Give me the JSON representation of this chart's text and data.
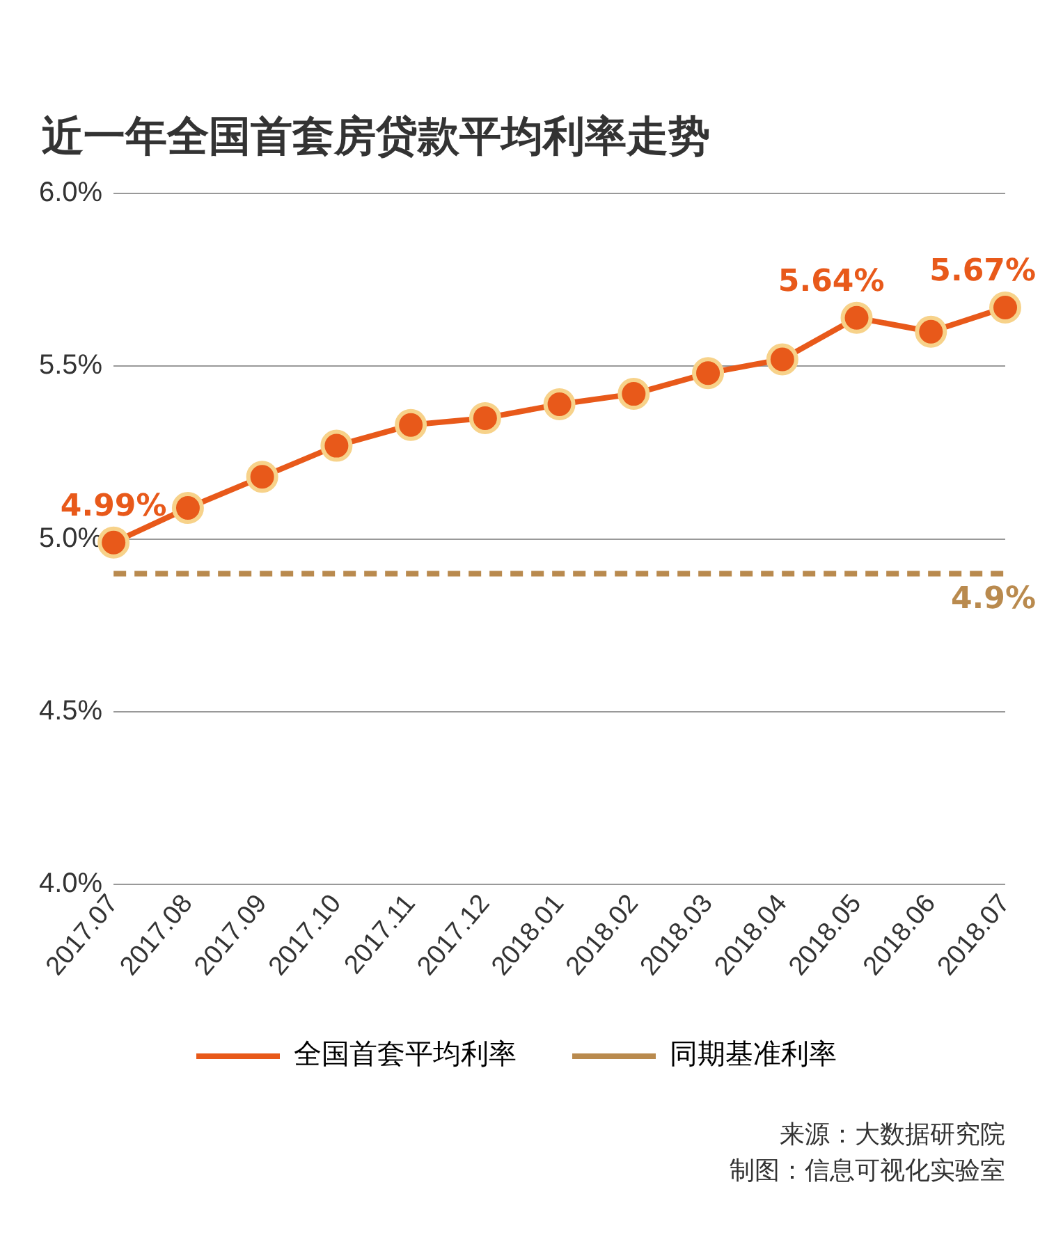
{
  "chart_data": {
    "type": "line",
    "title": "近一年全国首套房贷款平均利率走势",
    "categories": [
      "2017.07",
      "2017.08",
      "2017.09",
      "2017.10",
      "2017.11",
      "2017.12",
      "2018.01",
      "2018.02",
      "2018.03",
      "2018.04",
      "2018.05",
      "2018.06",
      "2018.07"
    ],
    "series": [
      {
        "name": "全国首套平均利率",
        "color": "#e8591a",
        "marker": "circle",
        "line_style": "solid",
        "values": [
          4.99,
          5.09,
          5.18,
          5.27,
          5.33,
          5.35,
          5.39,
          5.42,
          5.48,
          5.52,
          5.64,
          5.6,
          5.67
        ],
        "value_labels": [
          "4.99%",
          null,
          null,
          null,
          null,
          null,
          null,
          null,
          null,
          null,
          "5.64%",
          null,
          "5.67%"
        ]
      },
      {
        "name": "同期基准利率",
        "color": "#b98a4e",
        "marker": "none",
        "line_style": "dashed",
        "values": [
          4.9,
          4.9,
          4.9,
          4.9,
          4.9,
          4.9,
          4.9,
          4.9,
          4.9,
          4.9,
          4.9,
          4.9,
          4.9
        ],
        "value_labels": [
          null,
          null,
          null,
          null,
          null,
          null,
          null,
          null,
          null,
          null,
          null,
          null,
          "4.9%"
        ]
      }
    ],
    "ylim": [
      4,
      6
    ],
    "yticks": [
      {
        "value": 4,
        "label": "4.0%"
      },
      {
        "value": 4.5,
        "label": "4.5%"
      },
      {
        "value": 5,
        "label": "5.0%"
      },
      {
        "value": 5.5,
        "label": "5.5%"
      },
      {
        "value": 6,
        "label": "6.0%"
      }
    ],
    "grid": "y",
    "legend": "bottom",
    "annotations": [
      "来源：大数据研究院",
      "制图：信息可视化实验室"
    ]
  }
}
